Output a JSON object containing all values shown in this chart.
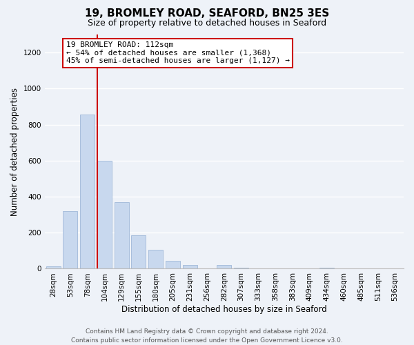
{
  "title": "19, BROMLEY ROAD, SEAFORD, BN25 3ES",
  "subtitle": "Size of property relative to detached houses in Seaford",
  "xlabel": "Distribution of detached houses by size in Seaford",
  "ylabel": "Number of detached properties",
  "bar_color": "#c8d8ee",
  "bar_edge_color": "#a0b8d8",
  "categories": [
    "28sqm",
    "53sqm",
    "78sqm",
    "104sqm",
    "129sqm",
    "155sqm",
    "180sqm",
    "205sqm",
    "231sqm",
    "256sqm",
    "282sqm",
    "307sqm",
    "333sqm",
    "358sqm",
    "383sqm",
    "409sqm",
    "434sqm",
    "460sqm",
    "485sqm",
    "511sqm",
    "536sqm"
  ],
  "values": [
    12,
    320,
    855,
    600,
    370,
    185,
    105,
    45,
    20,
    0,
    20,
    5,
    0,
    0,
    0,
    0,
    5,
    0,
    0,
    0,
    0
  ],
  "ylim": [
    0,
    1300
  ],
  "yticks": [
    0,
    200,
    400,
    600,
    800,
    1000,
    1200
  ],
  "property_line_idx": 3,
  "property_line_label": "19 BROMLEY ROAD: 112sqm",
  "annotation_line1": "← 54% of detached houses are smaller (1,368)",
  "annotation_line2": "45% of semi-detached houses are larger (1,127) →",
  "annotation_box_color": "#ffffff",
  "annotation_box_edge": "#cc0000",
  "vline_color": "#cc0000",
  "footer_line1": "Contains HM Land Registry data © Crown copyright and database right 2024.",
  "footer_line2": "Contains public sector information licensed under the Open Government Licence v3.0.",
  "bg_color": "#eef2f8",
  "grid_color": "#ffffff",
  "title_fontsize": 11,
  "subtitle_fontsize": 9,
  "xlabel_fontsize": 8.5,
  "ylabel_fontsize": 8.5,
  "tick_fontsize": 7.5,
  "annotation_fontsize": 8,
  "footer_fontsize": 6.5
}
